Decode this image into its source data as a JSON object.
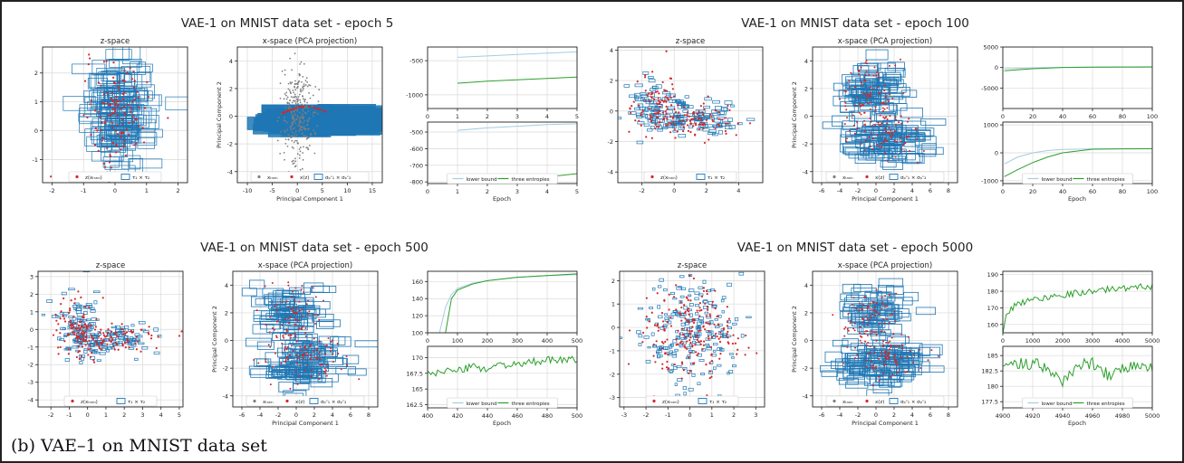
{
  "caption": "(b) VAE–1 on MNIST data set",
  "colors": {
    "boxes": "#1f77b4",
    "points": "#d62728",
    "grey_points": "#7f7f7f",
    "lower_bound": "#a6cbe3",
    "three_entropies": "#2ca02c",
    "grid": "#d9d9d9"
  },
  "labels": {
    "zspace": "z-space",
    "xspace": "x-space (PCA projection)",
    "pc1": "Principal Component 1",
    "pc2": "Principal Component 2",
    "epoch": "Epoch",
    "leg_z_points": "z(xₜᵣₐᵢₙ)",
    "leg_z_boxes": "τ₁ × τ₂",
    "leg_x_train": "xₜᵣₐᵢₙ",
    "leg_x_grey": "x(z)",
    "leg_x_z": "x(z)",
    "leg_x_boxes": "σₚᶜ₁ × σₚᶜ₂",
    "leg_lower": "lower bound",
    "leg_three": "three entropies"
  },
  "chart_data": [
    {
      "type": "scatter",
      "title": "VAE-1 on MNIST data set - epoch 5",
      "panels": [
        {
          "name": "z-space",
          "xlim": [
            -2.3,
            2.3
          ],
          "ylim": [
            -1.8,
            2.9
          ],
          "xticks": [
            -2,
            -1,
            0,
            1,
            2
          ],
          "yticks": [
            -1,
            0,
            1,
            2
          ]
        },
        {
          "name": "x-space",
          "xlim": [
            -12,
            17
          ],
          "ylim": [
            -4.8,
            5
          ],
          "xticks": [
            -10,
            -5,
            0,
            5,
            10,
            15
          ],
          "yticks": [
            -4,
            -2,
            0,
            2,
            4
          ]
        },
        {
          "name": "loss-top",
          "type": "line",
          "xlim": [
            0,
            5
          ],
          "ylim": [
            -1200,
            -300
          ],
          "xticks": [
            0,
            1,
            2,
            3,
            4,
            5
          ],
          "yticks": [
            -1000,
            -500
          ],
          "series": [
            {
              "name": "lower bound",
              "x": [
                1,
                2,
                3,
                4,
                5
              ],
              "y": [
                -450,
                -430,
                -410,
                -390,
                -370
              ]
            },
            {
              "name": "three entropies",
              "x": [
                1,
                2,
                3,
                4,
                5
              ],
              "y": [
                -830,
                -800,
                -780,
                -760,
                -740
              ]
            }
          ]
        },
        {
          "name": "loss-bottom",
          "type": "line",
          "xlim": [
            0,
            5
          ],
          "ylim": [
            -810,
            -440
          ],
          "xticks": [
            0,
            1,
            2,
            3,
            4,
            5
          ],
          "yticks": [
            -800,
            -700,
            -600,
            -500
          ],
          "series": [
            {
              "name": "lower bound",
              "x": [
                1,
                2,
                3,
                4,
                5
              ],
              "y": [
                -490,
                -475,
                -465,
                -455,
                -450
              ]
            },
            {
              "name": "three entropies",
              "x": [
                1,
                2,
                3,
                4,
                5
              ],
              "y": [
                -805,
                -795,
                -785,
                -770,
                -750
              ]
            }
          ]
        }
      ]
    },
    {
      "type": "scatter",
      "title": "VAE-1 on MNIST data set - epoch 100",
      "panels": [
        {
          "name": "z-space",
          "xlim": [
            -3.5,
            5.5
          ],
          "ylim": [
            -4.7,
            4.2
          ],
          "xticks": [
            -2,
            0,
            2,
            4
          ],
          "yticks": [
            -4,
            -2,
            0,
            2,
            4
          ]
        },
        {
          "name": "x-space",
          "xlim": [
            -7,
            9
          ],
          "ylim": [
            -4.8,
            5
          ],
          "xticks": [
            -6,
            -4,
            -2,
            0,
            2,
            4,
            6,
            8
          ],
          "yticks": [
            -4,
            -2,
            0,
            2,
            4
          ]
        },
        {
          "name": "loss-top",
          "type": "line",
          "xlim": [
            0,
            100
          ],
          "ylim": [
            -10000,
            5000
          ],
          "xticks": [
            0,
            20,
            40,
            60,
            80,
            100
          ],
          "yticks": [
            -5000,
            0,
            5000
          ],
          "series": [
            {
              "name": "lower bound",
              "x": [
                1,
                20,
                40,
                60,
                80,
                100
              ],
              "y": [
                -300,
                -100,
                50,
                100,
                120,
                130
              ]
            },
            {
              "name": "three entropies",
              "x": [
                1,
                20,
                40,
                60,
                80,
                100
              ],
              "y": [
                -800,
                -300,
                0,
                100,
                130,
                140
              ]
            }
          ]
        },
        {
          "name": "loss-bottom",
          "type": "line",
          "xlim": [
            0,
            100
          ],
          "ylim": [
            -1100,
            1100
          ],
          "xticks": [
            0,
            20,
            40,
            60,
            80,
            100
          ],
          "yticks": [
            -1000,
            0,
            1000
          ],
          "series": [
            {
              "name": "lower bound",
              "x": [
                1,
                10,
                20,
                30,
                40,
                60,
                80,
                100
              ],
              "y": [
                -400,
                -150,
                0,
                80,
                120,
                140,
                145,
                150
              ]
            },
            {
              "name": "three entropies",
              "x": [
                1,
                10,
                20,
                30,
                40,
                60,
                80,
                100
              ],
              "y": [
                -850,
                -600,
                -350,
                -150,
                0,
                130,
                140,
                145
              ]
            }
          ]
        }
      ]
    },
    {
      "type": "scatter",
      "title": "VAE-1 on MNIST data set - epoch 500",
      "panels": [
        {
          "name": "z-space",
          "xlim": [
            -2.7,
            5.2
          ],
          "ylim": [
            -4.4,
            3.3
          ],
          "xticks": [
            -2,
            -1,
            0,
            1,
            2,
            3,
            4,
            5
          ],
          "yticks": [
            -4,
            -3,
            -2,
            -1,
            0,
            1,
            2,
            3
          ]
        },
        {
          "name": "x-space",
          "xlim": [
            -7,
            9
          ],
          "ylim": [
            -4.8,
            5
          ],
          "xticks": [
            -6,
            -4,
            -2,
            0,
            2,
            4,
            6,
            8
          ],
          "yticks": [
            -4,
            -2,
            0,
            2,
            4
          ]
        },
        {
          "name": "loss-top",
          "type": "line",
          "xlim": [
            0,
            500
          ],
          "ylim": [
            100,
            172
          ],
          "xticks": [
            0,
            100,
            200,
            300,
            400,
            500
          ],
          "yticks": [
            100,
            120,
            140,
            160
          ],
          "series": [
            {
              "name": "lower bound",
              "x": [
                40,
                60,
                80,
                100,
                150,
                200,
                300,
                400,
                500
              ],
              "y": [
                100,
                130,
                145,
                152,
                158,
                161,
                165,
                167,
                168
              ]
            },
            {
              "name": "three entropies",
              "x": [
                60,
                80,
                100,
                150,
                200,
                300,
                400,
                500
              ],
              "y": [
                100,
                140,
                150,
                157,
                161,
                165,
                167,
                169
              ]
            }
          ]
        },
        {
          "name": "loss-bottom",
          "type": "line",
          "xlim": [
            400,
            500
          ],
          "ylim": [
            162,
            171.8
          ],
          "xticks": [
            400,
            420,
            440,
            460,
            480,
            500
          ],
          "yticks": [
            162.5,
            165.0,
            167.5,
            170.0
          ],
          "series": [
            {
              "name": "three entropies",
              "x": [
                400,
                410,
                420,
                430,
                440,
                450,
                460,
                470,
                480,
                490,
                500
              ],
              "y": [
                167.3,
                168.0,
                167.8,
                168.6,
                168.2,
                169.0,
                168.7,
                169.3,
                169.6,
                169.5,
                169.8
              ]
            }
          ]
        }
      ]
    },
    {
      "type": "scatter",
      "title": "VAE-1 on MNIST data set - epoch 5000",
      "panels": [
        {
          "name": "z-space",
          "xlim": [
            -3.2,
            3.4
          ],
          "ylim": [
            -3.4,
            2.4
          ],
          "xticks": [
            -3,
            -2,
            -1,
            0,
            1,
            2,
            3
          ],
          "yticks": [
            -3,
            -2,
            -1,
            0,
            1,
            2
          ]
        },
        {
          "name": "x-space",
          "xlim": [
            -7,
            9
          ],
          "ylim": [
            -4.8,
            5
          ],
          "xticks": [
            -6,
            -4,
            -2,
            0,
            2,
            4,
            6,
            8
          ],
          "yticks": [
            -4,
            -2,
            0,
            2,
            4
          ]
        },
        {
          "name": "loss-top",
          "type": "line",
          "xlim": [
            0,
            5000
          ],
          "ylim": [
            155,
            192
          ],
          "xticks": [
            0,
            1000,
            2000,
            3000,
            4000,
            5000
          ],
          "yticks": [
            160,
            170,
            180,
            190
          ],
          "series": [
            {
              "name": "three entropies",
              "x": [
                30,
                100,
                300,
                600,
                1000,
                2000,
                3000,
                4000,
                5000
              ],
              "y": [
                155,
                165,
                170,
                173,
                175,
                178,
                180,
                182,
                183
              ]
            }
          ]
        },
        {
          "name": "loss-bottom",
          "type": "line",
          "xlim": [
            4900,
            5000
          ],
          "ylim": [
            176.5,
            186.5
          ],
          "xticks": [
            4900,
            4920,
            4940,
            4960,
            4980,
            5000
          ],
          "yticks": [
            177.5,
            180.0,
            182.5,
            185.0
          ],
          "series": [
            {
              "name": "three entropies",
              "x": [
                4900,
                4910,
                4920,
                4930,
                4940,
                4950,
                4960,
                4970,
                4980,
                4990,
                5000
              ],
              "y": [
                184.0,
                183.5,
                183.8,
                182.5,
                181.0,
                183.0,
                184.0,
                182.0,
                182.8,
                183.5,
                183.0
              ]
            }
          ]
        }
      ]
    }
  ]
}
